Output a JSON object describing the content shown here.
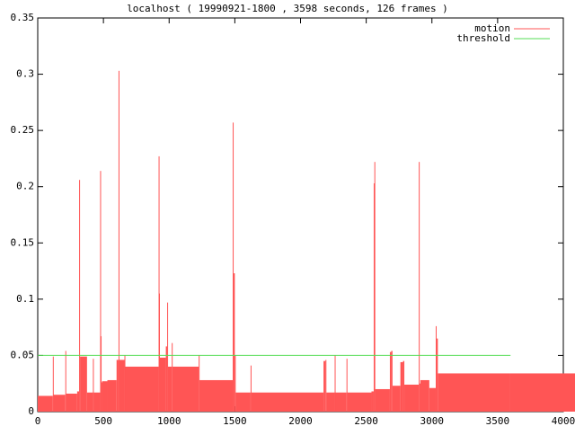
{
  "chart_data": {
    "type": "impulse-area",
    "title": "localhost ( 19990921-1800 , 3598 seconds, 126 frames )",
    "xlim": [
      0,
      4000
    ],
    "xticks": [
      0,
      500,
      1000,
      1500,
      2000,
      2500,
      3000,
      3500,
      4000
    ],
    "ylim": [
      0,
      0.35
    ],
    "yticks": [
      0,
      0.05,
      0.1,
      0.15,
      0.2,
      0.25,
      0.3,
      0.35
    ],
    "legend": "top-right",
    "series": [
      {
        "name": "motion",
        "color": "#ff5555",
        "x": [
          0,
          115,
          120,
          210,
          216,
          300,
          315,
          322,
          375,
          420,
          426,
          475,
          479,
          485,
          490,
          530,
          600,
          615,
          621,
          660,
          666,
          920,
          923,
          928,
          975,
          985,
          990,
          1020,
          1025,
          1225,
          1230,
          1484,
          1490,
          1500,
          1506,
          1620,
          1626,
          2175,
          2190,
          2196,
          2260,
          2266,
          2350,
          2356,
          2540,
          2557,
          2562,
          2568,
          2680,
          2690,
          2700,
          2760,
          2780,
          2790,
          2900,
          2906,
          2912,
          2980,
          3029,
          3035,
          3045,
          3590
        ],
        "values": [
          0.014,
          0.049,
          0.015,
          0.054,
          0.016,
          0.018,
          0.206,
          0.049,
          0.017,
          0.047,
          0.017,
          0.214,
          0.067,
          0.026,
          0.027,
          0.028,
          0.046,
          0.303,
          0.046,
          0.05,
          0.04,
          0.227,
          0.105,
          0.048,
          0.058,
          0.097,
          0.04,
          0.061,
          0.04,
          0.05,
          0.028,
          0.257,
          0.123,
          0.05,
          0.017,
          0.041,
          0.017,
          0.045,
          0.046,
          0.017,
          0.05,
          0.017,
          0.047,
          0.017,
          0.018,
          0.203,
          0.222,
          0.02,
          0.053,
          0.054,
          0.023,
          0.044,
          0.045,
          0.024,
          0.222,
          0.025,
          0.028,
          0.021,
          0.076,
          0.065,
          0.034,
          0.034
        ]
      },
      {
        "name": "threshold",
        "color": "#55dd55",
        "x": [
          0,
          3598
        ],
        "values": [
          0.05,
          0.05
        ]
      }
    ]
  }
}
